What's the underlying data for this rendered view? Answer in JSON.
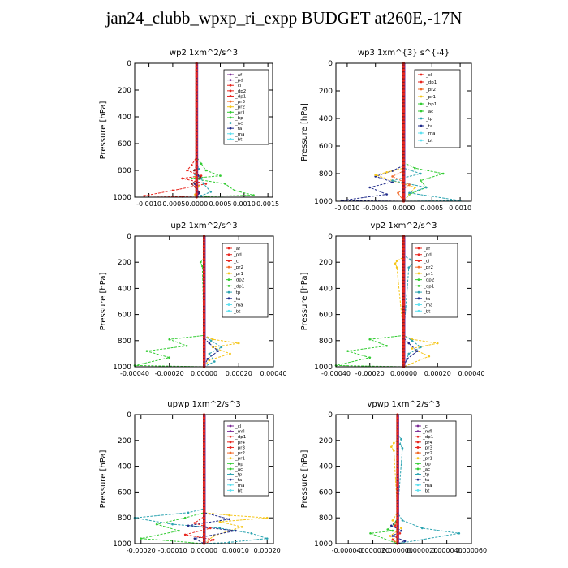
{
  "title": "jan24_clubb_wpxp_ri_expp  BUDGET at260E,-17N",
  "colors": {
    "red": "#e8261e",
    "purple": "#7a2a95",
    "darkred": "#8b1a1a",
    "orange": "#f26b2a",
    "yellow": "#f5c518",
    "green": "#33cc33",
    "teal": "#2aa3b0",
    "navy": "#1f2a8a",
    "cyan": "#5de0f0",
    "magenta": "#b02aa8",
    "gray": "#999999"
  },
  "chart_data": [
    {
      "type": "line",
      "title": "wp2   1xm^2/s^3",
      "ylabel": "Pressure [hPa]",
      "xlim": [
        -0.0013,
        0.0016
      ],
      "ylim": [
        1000,
        0
      ],
      "xticks": [
        "-0.0010",
        "-0.0005",
        "0.0000",
        "0.0005",
        "0.0010",
        "0.0015"
      ],
      "xtick_values": [
        -0.001,
        -0.0005,
        0,
        0.0005,
        0.001,
        0.0015
      ],
      "yticks": [
        0,
        200,
        400,
        600,
        800,
        1000
      ],
      "legend": [
        "_af",
        "_pd",
        "_cl",
        "_dp2",
        "_dp1",
        "_pr3",
        "_pr2",
        "_pr1",
        "_bp",
        "_ac",
        "_ta",
        "_ma",
        "_bt"
      ],
      "legend_colors": [
        "purple",
        "purple",
        "red",
        "red",
        "red",
        "orange",
        "yellow",
        "green",
        "green",
        "teal",
        "navy",
        "cyan",
        "cyan"
      ],
      "series": [
        {
          "color": "green",
          "x": [
            0,
            0,
            0.0001,
            0.0002,
            0.0005,
            -0.0001,
            0.0006,
            0.0008,
            0.0012,
            0.0002,
            0
          ],
          "y": [
            0,
            700,
            750,
            800,
            840,
            860,
            900,
            950,
            985,
            995,
            1000
          ]
        },
        {
          "color": "red",
          "x": [
            0,
            0,
            -0.0001,
            -0.0002,
            0.0001,
            -0.0003,
            0.0002,
            -0.0005,
            -0.0011,
            -0.0003,
            0
          ],
          "y": [
            0,
            700,
            760,
            800,
            840,
            860,
            900,
            950,
            990,
            996,
            1000
          ]
        },
        {
          "color": "teal",
          "x": [
            0,
            0,
            5e-05,
            -3e-05,
            0.0001,
            0.00015,
            0.0003,
            0.0001,
            0
          ],
          "y": [
            0,
            740,
            790,
            830,
            860,
            900,
            960,
            990,
            1000
          ]
        },
        {
          "color": "darkred",
          "x": [
            0,
            0,
            -5e-05,
            8e-05,
            -0.0001,
            5e-05,
            0
          ],
          "y": [
            0,
            760,
            800,
            850,
            900,
            960,
            1000
          ]
        },
        {
          "color": "navy",
          "x": [
            0,
            0,
            3e-05,
            -4e-05,
            6e-05,
            0
          ],
          "y": [
            0,
            780,
            840,
            900,
            970,
            1000
          ]
        },
        {
          "color": "yellow",
          "x": [
            0,
            0,
            -2e-05,
            4e-05,
            -3e-05,
            0
          ],
          "y": [
            0,
            790,
            850,
            920,
            980,
            1000
          ]
        },
        {
          "color": "purple",
          "x": [
            0,
            0,
            0
          ],
          "y": [
            0,
            500,
            1000
          ]
        }
      ]
    },
    {
      "type": "line",
      "title": "wp3   1xm^{3} s^{-4}",
      "ylabel": "Pressure [hPa]",
      "xlim": [
        -0.0012,
        0.0012
      ],
      "ylim": [
        1000,
        0
      ],
      "xticks": [
        "-0.0010",
        "-0.0005",
        "0.0000",
        "0.0005",
        "0.0010"
      ],
      "xtick_values": [
        -0.001,
        -0.0005,
        0,
        0.0005,
        0.001
      ],
      "yticks": [
        0,
        200,
        400,
        600,
        800,
        1000
      ],
      "legend": [
        "_cl",
        "_dp1",
        "_pr2",
        "_pr1",
        "_bp1",
        "_ac",
        "_tp",
        "_ta",
        "_ma",
        "_bt"
      ],
      "legend_colors": [
        "red",
        "red",
        "orange",
        "yellow",
        "green",
        "green",
        "teal",
        "navy",
        "cyan",
        "cyan"
      ],
      "series": [
        {
          "color": "green",
          "x": [
            0,
            0,
            0.0002,
            0.0007,
            0.0003,
            0.0004,
            0.0001,
            0
          ],
          "y": [
            0,
            720,
            760,
            800,
            850,
            900,
            950,
            1000
          ]
        },
        {
          "color": "navy",
          "x": [
            0,
            0,
            -0.0002,
            -0.0005,
            -0.0002,
            -0.0006,
            -0.0003,
            -0.0011,
            0
          ],
          "y": [
            0,
            740,
            780,
            820,
            860,
            900,
            950,
            995,
            1000
          ]
        },
        {
          "color": "yellow",
          "x": [
            0,
            0,
            -0.0003,
            -0.0005,
            -0.0002,
            0.0002,
            0
          ],
          "y": [
            0,
            760,
            790,
            810,
            850,
            900,
            1000
          ]
        },
        {
          "color": "teal",
          "x": [
            0,
            0,
            0.0003,
            -0.0002,
            0.0004,
            0.0001,
            0.001,
            0
          ],
          "y": [
            0,
            760,
            800,
            850,
            900,
            940,
            995,
            1000
          ]
        },
        {
          "color": "orange",
          "x": [
            0,
            0,
            -0.0002,
            0.0001,
            -0.0001,
            0
          ],
          "y": [
            0,
            780,
            820,
            880,
            940,
            1000
          ]
        },
        {
          "color": "darkred",
          "x": [
            0,
            0,
            0
          ],
          "y": [
            0,
            500,
            1000
          ]
        }
      ]
    },
    {
      "type": "line",
      "title": "up2   1xm^2/s^3",
      "ylabel": "Pressure [hPa]",
      "xlim": [
        -0.0004,
        0.0004
      ],
      "ylim": [
        1000,
        0
      ],
      "xticks": [
        "-0.00040",
        "-0.00020",
        "0.00000",
        "0.00020",
        "0.00040"
      ],
      "xtick_values": [
        -0.0004,
        -0.0002,
        0,
        0.0002,
        0.0004
      ],
      "yticks": [
        0,
        200,
        400,
        600,
        800,
        1000
      ],
      "legend": [
        "_af",
        "_pd",
        "_cl",
        "_pr2",
        "_pr1",
        "_dp2",
        "_dp1",
        "_tp",
        "_ta",
        "_ma",
        "_bt"
      ],
      "legend_colors": [
        "red",
        "red",
        "red",
        "orange",
        "yellow",
        "green",
        "green",
        "teal",
        "navy",
        "cyan",
        "cyan"
      ],
      "series": [
        {
          "color": "green",
          "x": [
            0,
            0,
            -2e-05,
            -1e-05,
            0,
            -0.0002,
            -0.0001,
            -0.00033,
            -0.0002,
            -0.0004,
            0
          ],
          "y": [
            0,
            170,
            200,
            230,
            760,
            790,
            840,
            880,
            930,
            990,
            1000
          ]
        },
        {
          "color": "yellow",
          "x": [
            0,
            0,
            5e-05,
            0.0002,
            5e-05,
            0.00015,
            3e-05,
            0
          ],
          "y": [
            0,
            760,
            790,
            820,
            850,
            900,
            950,
            1000
          ]
        },
        {
          "color": "teal",
          "x": [
            0,
            0,
            4e-05,
            0.0001,
            3e-05,
            6e-05,
            0
          ],
          "y": [
            0,
            760,
            800,
            850,
            900,
            960,
            1000
          ]
        },
        {
          "color": "navy",
          "x": [
            0,
            0,
            3e-05,
            8e-05,
            2e-05,
            0
          ],
          "y": [
            0,
            780,
            820,
            880,
            940,
            1000
          ]
        },
        {
          "color": "darkred",
          "x": [
            0,
            0,
            0
          ],
          "y": [
            0,
            500,
            1000
          ]
        }
      ]
    },
    {
      "type": "line",
      "title": "vp2   1xm^2/s^3",
      "ylabel": "Pressure [hPa]",
      "xlim": [
        -0.0004,
        0.0004
      ],
      "ylim": [
        1000,
        0
      ],
      "xticks": [
        "-0.00040",
        "-0.00020",
        "0.00000",
        "0.00020",
        "0.00040"
      ],
      "xtick_values": [
        -0.0004,
        -0.0002,
        0,
        0.0002,
        0.0004
      ],
      "yticks": [
        0,
        200,
        400,
        600,
        800,
        1000
      ],
      "legend": [
        "_af",
        "_pd",
        "_cl",
        "_pr2",
        "_pr1",
        "_dp2",
        "_dp1",
        "_tp",
        "_ta",
        "_ma",
        "_bt"
      ],
      "legend_colors": [
        "red",
        "red",
        "red",
        "orange",
        "yellow",
        "green",
        "green",
        "teal",
        "navy",
        "cyan",
        "cyan"
      ],
      "series": [
        {
          "color": "yellow",
          "x": [
            0,
            0,
            -4e-05,
            -5e-05,
            -4e-05,
            0,
            5e-05,
            0.0002,
            5e-05,
            0.00015,
            0
          ],
          "y": [
            0,
            160,
            190,
            210,
            240,
            760,
            790,
            820,
            860,
            920,
            1000
          ]
        },
        {
          "color": "teal",
          "x": [
            0,
            0,
            4e-05,
            6e-05,
            3e-05,
            0,
            5e-05,
            0.0001,
            3e-05,
            0
          ],
          "y": [
            0,
            150,
            180,
            200,
            240,
            760,
            800,
            850,
            900,
            1000
          ]
        },
        {
          "color": "green",
          "x": [
            0,
            0,
            -0.0002,
            -0.0001,
            -0.00033,
            -0.0002,
            -0.0004,
            0
          ],
          "y": [
            0,
            760,
            790,
            840,
            880,
            930,
            990,
            1000
          ]
        },
        {
          "color": "navy",
          "x": [
            0,
            0,
            3e-05,
            8e-05,
            2e-05,
            0
          ],
          "y": [
            0,
            780,
            820,
            880,
            940,
            1000
          ]
        },
        {
          "color": "darkred",
          "x": [
            0,
            0,
            0
          ],
          "y": [
            0,
            500,
            1000
          ]
        }
      ]
    },
    {
      "type": "line",
      "title": "upwp   1xm^2/s^3",
      "ylabel": "Pressure [hPa]",
      "xlim": [
        -0.00022,
        0.00022
      ],
      "ylim": [
        1000,
        0
      ],
      "xticks": [
        "-0.00020",
        "-0.00010",
        "0.00000",
        "0.00010",
        "0.00020"
      ],
      "xtick_values": [
        -0.0002,
        -0.0001,
        0,
        0.0001,
        0.0002
      ],
      "yticks": [
        0,
        200,
        400,
        600,
        800,
        1000
      ],
      "legend": [
        "_cl",
        "_mfl",
        "_dp1",
        "_pr4",
        "_pr3",
        "_pr2",
        "_pr1",
        "_bp",
        "_ac",
        "_tp",
        "_ta",
        "_ma",
        "_bt"
      ],
      "legend_colors": [
        "purple",
        "purple",
        "red",
        "red",
        "red",
        "orange",
        "yellow",
        "green",
        "green",
        "teal",
        "navy",
        "cyan",
        "cyan"
      ],
      "series": [
        {
          "color": "teal",
          "x": [
            0,
            0,
            -5e-05,
            -0.00022,
            -0.0001,
            5e-05,
            0.00015,
            0.0002,
            8e-05,
            0
          ],
          "y": [
            0,
            730,
            760,
            800,
            850,
            880,
            920,
            960,
            990,
            1000
          ]
        },
        {
          "color": "yellow",
          "x": [
            0,
            0,
            8e-05,
            0.0002,
            5e-05,
            0.00012,
            3e-05,
            0
          ],
          "y": [
            0,
            760,
            780,
            800,
            830,
            870,
            940,
            1000
          ]
        },
        {
          "color": "green",
          "x": [
            0,
            0,
            -6e-05,
            -0.00015,
            -8e-05,
            -0.0002,
            0
          ],
          "y": [
            0,
            760,
            800,
            850,
            900,
            960,
            1000
          ]
        },
        {
          "color": "navy",
          "x": [
            0,
            0,
            8e-05,
            -5e-05,
            0.0001,
            -3e-05,
            0
          ],
          "y": [
            0,
            760,
            810,
            860,
            900,
            960,
            1000
          ]
        },
        {
          "color": "red",
          "x": [
            0,
            0,
            -3e-05,
            2e-05,
            -6e-05,
            3e-05,
            0
          ],
          "y": [
            0,
            790,
            840,
            880,
            930,
            970,
            1000
          ]
        },
        {
          "color": "purple",
          "x": [
            0,
            0,
            0
          ],
          "y": [
            0,
            500,
            1000
          ]
        }
      ]
    },
    {
      "type": "line",
      "title": "vpwp   1xm^2/s^3",
      "ylabel": "Pressure [hPa]",
      "xlim": [
        -5e-05,
        6e-05
      ],
      "ylim": [
        1000,
        0
      ],
      "xticks": [
        "-0.000040",
        "-0.000020",
        "0.000000",
        "0.000020",
        "0.000040",
        "0.000060"
      ],
      "xtick_values": [
        -4e-05,
        -2e-05,
        0,
        2e-05,
        4e-05,
        6e-05
      ],
      "yticks": [
        0,
        200,
        400,
        600,
        800,
        1000
      ],
      "legend": [
        "_cl",
        "_mfl",
        "_dp1",
        "_pr4",
        "_pr3",
        "_pr2",
        "_pr1",
        "_bp",
        "_ac",
        "_tp",
        "_ta",
        "_ma",
        "_bt"
      ],
      "legend_colors": [
        "purple",
        "purple",
        "red",
        "red",
        "red",
        "orange",
        "yellow",
        "green",
        "green",
        "teal",
        "navy",
        "cyan",
        "cyan"
      ],
      "series": [
        {
          "color": "teal",
          "x": [
            0,
            0,
            3e-06,
            2e-06,
            4e-06,
            0,
            4e-06,
            2e-05,
            5e-05,
            0
          ],
          "y": [
            0,
            150,
            190,
            230,
            260,
            760,
            820,
            880,
            920,
            1000
          ]
        },
        {
          "color": "yellow",
          "x": [
            0,
            0,
            -3e-06,
            -5e-06,
            -3e-06,
            0,
            -4e-06,
            3e-06,
            -6e-06,
            0
          ],
          "y": [
            0,
            200,
            220,
            250,
            280,
            760,
            820,
            880,
            940,
            1000
          ]
        },
        {
          "color": "green",
          "x": [
            0,
            0,
            -3e-06,
            -8e-06,
            -4e-06,
            -2.2e-05,
            0
          ],
          "y": [
            0,
            800,
            850,
            890,
            900,
            920,
            1000
          ]
        },
        {
          "color": "navy",
          "x": [
            0,
            0,
            -5e-06,
            3e-06,
            -4e-06,
            6e-06,
            0
          ],
          "y": [
            0,
            820,
            860,
            900,
            940,
            980,
            1000
          ]
        },
        {
          "color": "red",
          "x": [
            0,
            0,
            -2e-06,
            2e-06,
            -4e-06,
            0
          ],
          "y": [
            0,
            800,
            860,
            920,
            970,
            1000
          ]
        },
        {
          "color": "purple",
          "x": [
            0,
            0,
            0
          ],
          "y": [
            0,
            500,
            1000
          ]
        }
      ]
    }
  ]
}
